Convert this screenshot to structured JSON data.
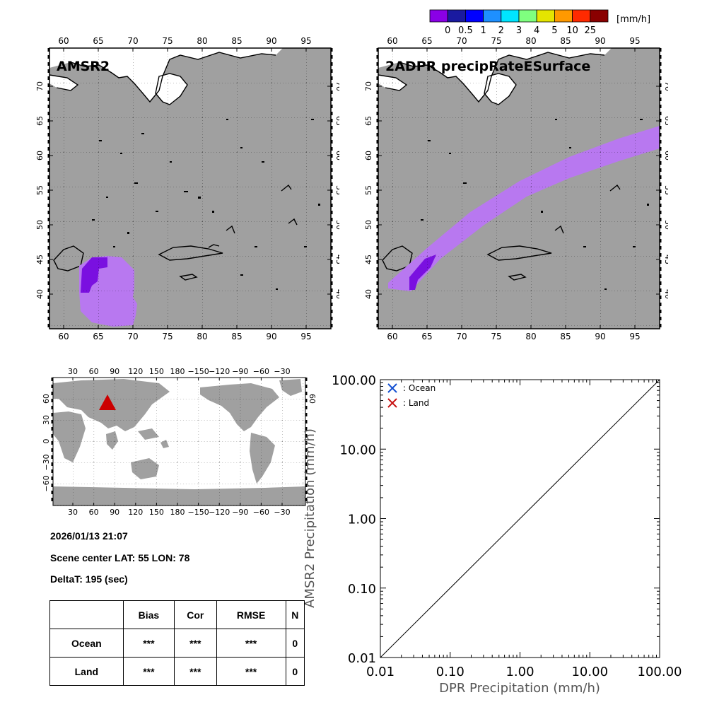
{
  "colorbar": {
    "unit": "[mm/h]",
    "colors": [
      "#8a00e6",
      "#1a1aa0",
      "#0000ff",
      "#1e90ff",
      "#00e5ff",
      "#7fff7f",
      "#e5e500",
      "#ff9900",
      "#ff2a00",
      "#8a0000"
    ],
    "tick_labels": [
      "0",
      "0.5",
      "1",
      "2",
      "3",
      "4",
      "5",
      "10",
      "25"
    ]
  },
  "map_left": {
    "title": "AMSR2",
    "x_ticks": [
      "60",
      "65",
      "70",
      "75",
      "80",
      "85",
      "90",
      "95"
    ],
    "y_ticks": [
      "40",
      "45",
      "50",
      "55",
      "60",
      "65",
      "70"
    ]
  },
  "map_right": {
    "title": "2ADPR precipRateESurface",
    "x_ticks": [
      "60",
      "65",
      "70",
      "75",
      "80",
      "85",
      "90",
      "95"
    ],
    "y_ticks": [
      "40",
      "45",
      "50",
      "55",
      "60",
      "65",
      "70"
    ]
  },
  "world_map": {
    "x_ticks": [
      "30",
      "60",
      "90",
      "120",
      "150",
      "180",
      "−150",
      "−120",
      "−90",
      "−60",
      "−30"
    ],
    "y_ticks": [
      "60",
      "30",
      "0",
      "−30",
      "−60"
    ],
    "marker_color": "#cc0000"
  },
  "info": {
    "datetime": "2026/01/13 21:07",
    "scene_center": "Scene center LAT: 55   LON:  78",
    "delta_t": "DeltaT:  195 (sec)"
  },
  "stats_table": {
    "headers": [
      "",
      "Bias",
      "Cor",
      "RMSE",
      "N"
    ],
    "rows": [
      {
        "label": "Ocean",
        "bias": "***",
        "cor": "***",
        "rmse": "***",
        "n": "0"
      },
      {
        "label": "Land",
        "bias": "***",
        "cor": "***",
        "rmse": "***",
        "n": "0"
      }
    ]
  },
  "chart_data": {
    "type": "scatter",
    "xscale": "log",
    "yscale": "log",
    "xlim": [
      0.01,
      100
    ],
    "ylim": [
      0.01,
      100
    ],
    "xlabel": "DPR Precipitation (mm/h)",
    "ylabel": "AMSR2 Precipitation (mm/h)",
    "x_tick_labels": [
      "0.01",
      "0.10",
      "1.00",
      "10.00",
      "100.00"
    ],
    "y_tick_labels": [
      "0.01",
      "0.10",
      "1.00",
      "10.00",
      "100.00"
    ],
    "series": [
      {
        "name": ": Ocean",
        "color": "#1450d2",
        "points": []
      },
      {
        "name": ": Land",
        "color": "#c81414",
        "points": []
      }
    ],
    "reference_line": [
      [
        0.01,
        0.01
      ],
      [
        100,
        100
      ]
    ]
  }
}
